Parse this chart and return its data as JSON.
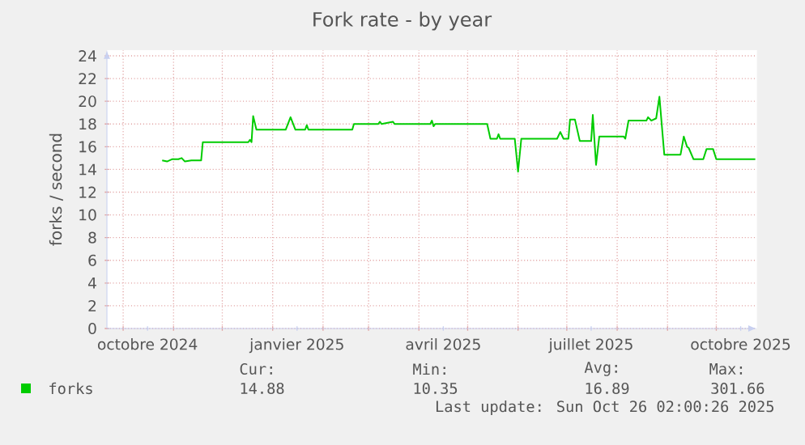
{
  "chart_data": {
    "type": "line",
    "title": "Fork rate - by year",
    "ylabel": "forks / second",
    "xlim": [
      "2024-09-21",
      "2025-10-26"
    ],
    "ylim": [
      0,
      24.5
    ],
    "xticks": [
      {
        "value": "2024-10-01",
        "label": null
      },
      {
        "value": "2024-11-01",
        "label": null
      },
      {
        "value": "2024-12-01",
        "label": null
      },
      {
        "value": "2025-01-01",
        "label": null
      },
      {
        "value": "2025-02-01",
        "label": null
      },
      {
        "value": "2025-03-01",
        "label": null
      },
      {
        "value": "2025-04-01",
        "label": null
      },
      {
        "value": "2025-05-01",
        "label": null
      },
      {
        "value": "2025-06-01",
        "label": null
      },
      {
        "value": "2025-07-01",
        "label": null
      },
      {
        "value": "2025-08-01",
        "label": null
      },
      {
        "value": "2025-09-01",
        "label": null
      },
      {
        "value": "2025-10-01",
        "label": null
      },
      {
        "value": "2024-10-16",
        "label": "octobre 2024"
      },
      {
        "value": "2025-01-16",
        "label": "janvier 2025"
      },
      {
        "value": "2025-04-16",
        "label": "avril 2025"
      },
      {
        "value": "2025-07-16",
        "label": "juillet 2025"
      },
      {
        "value": "2025-10-16",
        "label": "octobre 2025"
      }
    ],
    "yticks": [
      0,
      2,
      4,
      6,
      8,
      10,
      12,
      14,
      16,
      18,
      20,
      22,
      24
    ],
    "grid": true,
    "legend": "bottom left",
    "series": [
      {
        "name": "forks",
        "color": "#00cc00",
        "x": [
          "2024-10-25",
          "2024-10-28",
          "2024-10-31",
          "2024-11-04",
          "2024-11-06",
          "2024-11-08",
          "2024-11-12",
          "2024-11-15",
          "2024-11-18",
          "2024-11-19",
          "2024-12-17",
          "2024-12-18",
          "2024-12-19",
          "2024-12-20",
          "2024-12-22",
          "2025-01-09",
          "2025-01-12",
          "2025-01-15",
          "2025-01-21",
          "2025-01-22",
          "2025-01-23",
          "2025-02-19",
          "2025-02-20",
          "2025-03-07",
          "2025-03-08",
          "2025-03-09",
          "2025-03-16",
          "2025-03-17",
          "2025-04-08",
          "2025-04-09",
          "2025-04-10",
          "2025-04-11",
          "2025-05-13",
          "2025-05-15",
          "2025-05-19",
          "2025-05-20",
          "2025-05-21",
          "2025-05-30",
          "2025-06-01",
          "2025-06-03",
          "2025-06-25",
          "2025-06-27",
          "2025-06-29",
          "2025-07-02",
          "2025-07-03",
          "2025-07-06",
          "2025-07-09",
          "2025-07-16",
          "2025-07-17",
          "2025-07-19",
          "2025-07-21",
          "2025-08-05",
          "2025-08-06",
          "2025-08-08",
          "2025-08-19",
          "2025-08-20",
          "2025-08-22",
          "2025-08-25",
          "2025-08-27",
          "2025-08-30",
          "2025-09-09",
          "2025-09-11",
          "2025-09-13",
          "2025-09-14",
          "2025-09-17",
          "2025-09-23",
          "2025-09-25",
          "2025-09-29",
          "2025-10-01",
          "2025-10-25"
        ],
        "values": [
          14.8,
          14.7,
          14.9,
          14.9,
          15.0,
          14.7,
          14.8,
          14.8,
          14.8,
          16.4,
          16.4,
          16.6,
          16.4,
          18.7,
          17.5,
          17.5,
          18.6,
          17.5,
          17.5,
          17.9,
          17.5,
          17.5,
          18.0,
          18.0,
          18.2,
          18.0,
          18.2,
          18.0,
          18.0,
          18.3,
          17.8,
          18.0,
          18.0,
          16.7,
          16.7,
          17.1,
          16.7,
          16.7,
          13.8,
          16.7,
          16.7,
          17.3,
          16.7,
          16.7,
          18.4,
          18.4,
          16.5,
          16.5,
          18.8,
          14.4,
          16.9,
          16.9,
          16.7,
          18.3,
          18.3,
          18.6,
          18.3,
          18.5,
          20.4,
          15.3,
          15.3,
          16.9,
          16.0,
          15.9,
          14.9,
          14.9,
          15.8,
          15.8,
          14.9,
          14.9
        ]
      }
    ],
    "annotations": [
      "Cur:",
      "14.88",
      "Min:",
      "10.35",
      "Avg:",
      "16.89",
      "Max:",
      "301.66",
      "Last update: Sun Oct 26 02:00:26 2025"
    ]
  }
}
